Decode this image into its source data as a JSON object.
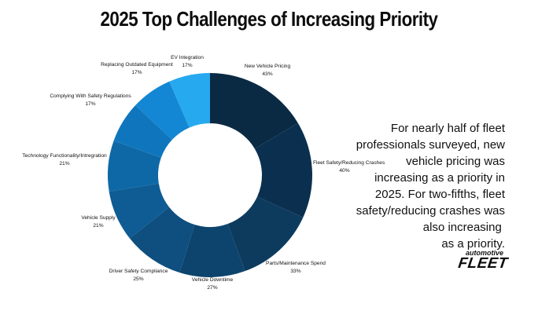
{
  "title": "2025 Top Challenges of Increasing Priority",
  "note_lines": [
    "For nearly half of fleet",
    "professionals surveyed, new",
    "vehicle pricing was",
    "increasing as a priority in",
    "2025. For two-fifths, fleet",
    "safety/reducing crashes was",
    "also increasing ",
    "as a priority."
  ],
  "logo": {
    "top": "automotive",
    "bottom": "FLEET"
  },
  "chart_data": {
    "type": "pie",
    "donut": true,
    "title": "2025 Top Challenges of Increasing Priority",
    "slices": [
      {
        "label": "New Vehicle Pricing",
        "value": 43,
        "display": "43%",
        "color": "#0a2a44"
      },
      {
        "label": "Fleet Safety/Reducing Crashes",
        "value": 40,
        "display": "40%",
        "color": "#0b304f"
      },
      {
        "label": "Parts/Maintenance Spend",
        "value": 33,
        "display": "33%",
        "color": "#0c3b5e"
      },
      {
        "label": "Vehicle Downtime",
        "value": 27,
        "display": "27%",
        "color": "#0d446d"
      },
      {
        "label": "Driver Safety Compliance",
        "value": 25,
        "display": "25%",
        "color": "#0e4f7f"
      },
      {
        "label": "Vehicle Supply",
        "value": 21,
        "display": "21%",
        "color": "#0e5c93"
      },
      {
        "label": "Technology Functionality/Intregration",
        "value": 21,
        "display": "21%",
        "color": "#0f68a6"
      },
      {
        "label": "Complying With Safety Regulations",
        "value": 17,
        "display": "17%",
        "color": "#0f76bd"
      },
      {
        "label": "Replacing Outdated Equipment",
        "value": 17,
        "display": "17%",
        "color": "#1387d3"
      },
      {
        "label": "EV Integration",
        "value": 17,
        "display": "17%",
        "color": "#27a9ef"
      }
    ]
  }
}
